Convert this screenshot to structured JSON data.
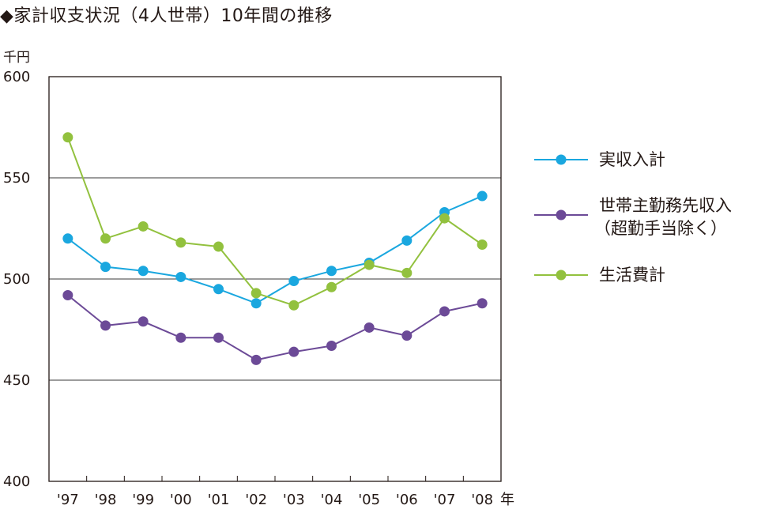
{
  "title": "◆家計収支状況（4人世帯）10年間の推移",
  "chart_data": {
    "type": "line",
    "title": "◆家計収支状況（4人世帯）10年間の推移",
    "ylabel": "千円",
    "xlabel": "年",
    "ylim": [
      400,
      600
    ],
    "yticks": [
      "600",
      "550",
      "500",
      "450",
      "400"
    ],
    "categories": [
      "'97",
      "'98",
      "'99",
      "'00",
      "'01",
      "'02",
      "'03",
      "'04",
      "'05",
      "'06",
      "'07",
      "'08"
    ],
    "grid": true,
    "legend_position": "right",
    "series": [
      {
        "name": "実収入計",
        "color": "#1aa7df",
        "values": [
          520,
          506,
          504,
          501,
          495,
          488,
          499,
          504,
          508,
          519,
          533,
          541
        ]
      },
      {
        "name": "世帯主勤務先収入",
        "name_line2": "（超勤手当除く）",
        "color": "#6c4a97",
        "values": [
          492,
          477,
          479,
          471,
          471,
          460,
          464,
          467,
          476,
          472,
          484,
          488
        ]
      },
      {
        "name": "生活費計",
        "color": "#92c13e",
        "values": [
          570,
          520,
          526,
          518,
          516,
          493,
          487,
          496,
          507,
          503,
          530,
          517
        ]
      }
    ]
  }
}
